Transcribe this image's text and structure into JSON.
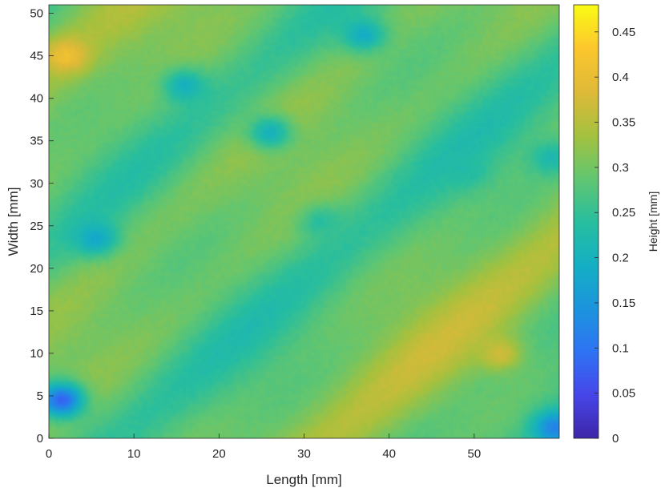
{
  "chart_data": {
    "type": "heatmap",
    "title": "",
    "xlabel": "Length [mm]",
    "ylabel": "Width [mm]",
    "colorbar_label": "Height [mm]",
    "colormap": "parula",
    "xlim": [
      0,
      60
    ],
    "ylim": [
      0,
      51
    ],
    "clim": [
      0,
      0.48
    ],
    "x_ticks": [
      0,
      10,
      20,
      30,
      40,
      50
    ],
    "y_ticks": [
      0,
      5,
      10,
      15,
      20,
      25,
      30,
      35,
      40,
      45,
      50
    ],
    "colorbar_ticks": [
      0,
      0.05,
      0.1,
      0.15,
      0.2,
      0.25,
      0.3,
      0.35,
      0.4,
      0.45
    ],
    "x_tick_labels": [
      "0",
      "10",
      "20",
      "30",
      "40",
      "50"
    ],
    "y_tick_labels": [
      "0",
      "5",
      "10",
      "15",
      "20",
      "25",
      "30",
      "35",
      "40",
      "45",
      "50"
    ],
    "colorbar_tick_labels": [
      "0",
      "0.05",
      "0.1",
      "0.15",
      "0.2",
      "0.25",
      "0.3",
      "0.35",
      "0.4",
      "0.45"
    ],
    "features": [
      {
        "kind": "dip",
        "x": 1.5,
        "y": 4.5,
        "height": 0.08
      },
      {
        "kind": "dip",
        "x": 59.5,
        "y": 1.2,
        "height": 0.12
      },
      {
        "kind": "dip",
        "x": 5.5,
        "y": 23.5,
        "height": 0.18
      },
      {
        "kind": "dip",
        "x": 16,
        "y": 41.5,
        "height": 0.2
      },
      {
        "kind": "dip",
        "x": 26,
        "y": 36,
        "height": 0.2
      },
      {
        "kind": "dip",
        "x": 37,
        "y": 47.5,
        "height": 0.19
      },
      {
        "kind": "dip",
        "x": 49,
        "y": 31.5,
        "height": 0.23
      },
      {
        "kind": "dip",
        "x": 59,
        "y": 33,
        "height": 0.22
      },
      {
        "kind": "dip",
        "x": 32,
        "y": 25.5,
        "height": 0.24
      },
      {
        "kind": "ridge",
        "x": 2,
        "y": 45,
        "height": 0.41
      },
      {
        "kind": "ridge",
        "x": 53,
        "y": 10,
        "height": 0.37
      }
    ]
  }
}
